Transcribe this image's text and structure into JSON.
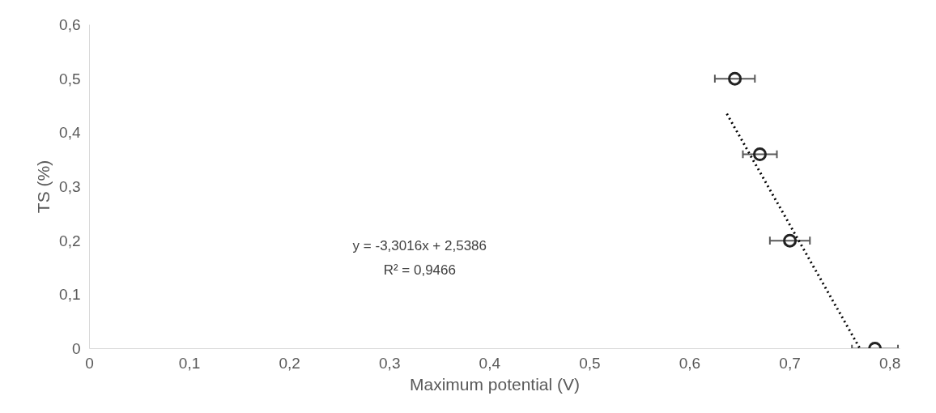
{
  "chart_data": {
    "type": "scatter",
    "xlabel": "Maximum potential (V)",
    "ylabel": "TS (%)",
    "xlim": [
      0,
      0.81
    ],
    "ylim": [
      0,
      0.6
    ],
    "xticks": [
      {
        "value": 0,
        "label": "0"
      },
      {
        "value": 0.1,
        "label": "0,1"
      },
      {
        "value": 0.2,
        "label": "0,2"
      },
      {
        "value": 0.3,
        "label": "0,3"
      },
      {
        "value": 0.4,
        "label": "0,4"
      },
      {
        "value": 0.5,
        "label": "0,5"
      },
      {
        "value": 0.6,
        "label": "0,6"
      },
      {
        "value": 0.7,
        "label": "0,7"
      },
      {
        "value": 0.8,
        "label": "0,8"
      }
    ],
    "yticks": [
      {
        "value": 0,
        "label": "0"
      },
      {
        "value": 0.1,
        "label": "0,1"
      },
      {
        "value": 0.2,
        "label": "0,2"
      },
      {
        "value": 0.3,
        "label": "0,3"
      },
      {
        "value": 0.4,
        "label": "0,4"
      },
      {
        "value": 0.5,
        "label": "0,5"
      },
      {
        "value": 0.6,
        "label": "0,6"
      }
    ],
    "grid": false,
    "series": [
      {
        "marker": "circle",
        "color": "#222222",
        "x": [
          0.645,
          0.67,
          0.7,
          0.785
        ],
        "values": [
          0.5,
          0.36,
          0.2,
          0
        ],
        "xerrors": [
          0.02,
          0.017,
          0.02,
          0.023
        ]
      },
      {
        "type": "line",
        "color": "#000000",
        "line_style": "dotted",
        "x": [
          0.637,
          0.77
        ],
        "values": [
          0.435,
          0.0
        ]
      }
    ],
    "annotations": [
      "y = -3,3016x + 2,5386",
      "R² = 0,9466"
    ]
  }
}
